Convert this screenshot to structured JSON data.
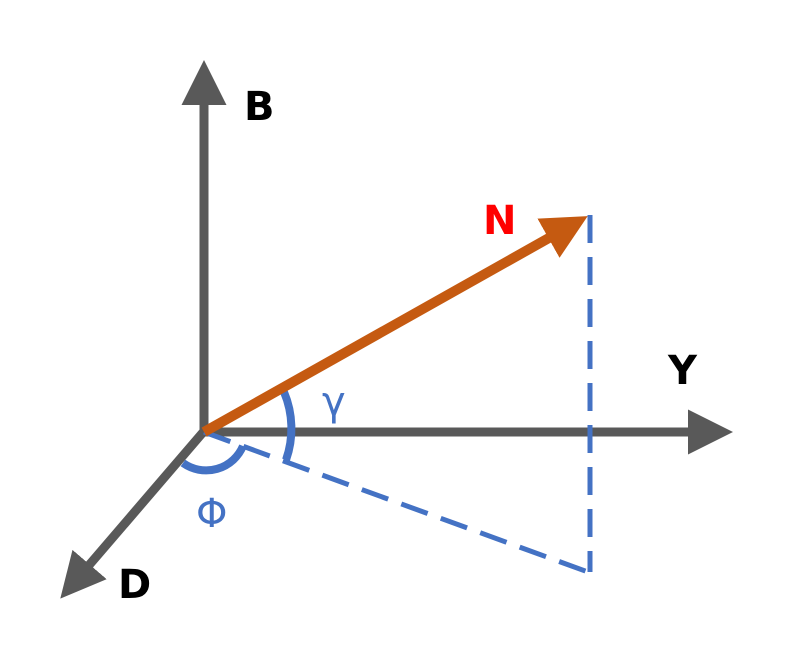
{
  "labels": {
    "axis_b": "B",
    "axis_y": "Y",
    "axis_d": "D",
    "vector_n": "N",
    "angle_gamma": "γ",
    "angle_phi": "Φ"
  },
  "colors": {
    "axis": "#595959",
    "vector": "#C55A11",
    "projection": "#4472C4",
    "vector_label": "#FF0000",
    "angle_label": "#4472C4",
    "axis_label": "#000000"
  }
}
